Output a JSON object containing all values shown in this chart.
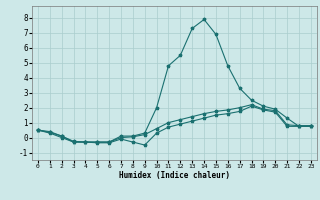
{
  "xlabel": "Humidex (Indice chaleur)",
  "bg_color": "#cde8e8",
  "grid_color": "#aacece",
  "line_color": "#1a7070",
  "xlim": [
    -0.5,
    23.5
  ],
  "ylim": [
    -1.5,
    8.8
  ],
  "xticks": [
    0,
    1,
    2,
    3,
    4,
    5,
    6,
    7,
    8,
    9,
    10,
    11,
    12,
    13,
    14,
    15,
    16,
    17,
    18,
    19,
    20,
    21,
    22,
    23
  ],
  "yticks": [
    -1,
    0,
    1,
    2,
    3,
    4,
    5,
    6,
    7,
    8
  ],
  "series": [
    {
      "x": [
        0,
        1,
        2,
        3,
        4,
        5,
        6,
        7,
        8,
        9,
        10,
        11,
        12,
        13,
        14,
        15,
        16,
        17,
        18,
        19,
        20,
        21,
        22,
        23
      ],
      "y": [
        0.5,
        0.4,
        0.1,
        -0.3,
        -0.3,
        -0.3,
        -0.3,
        0.1,
        0.1,
        0.3,
        2.0,
        4.8,
        5.5,
        7.3,
        7.9,
        6.9,
        4.8,
        3.3,
        2.5,
        2.1,
        1.9,
        1.3,
        0.75,
        0.75
      ]
    },
    {
      "x": [
        0,
        1,
        2,
        3,
        4,
        5,
        6,
        7,
        8,
        9,
        10,
        11,
        12,
        13,
        14,
        15,
        16,
        17,
        18,
        19,
        20,
        21,
        22,
        23
      ],
      "y": [
        0.5,
        0.3,
        0.0,
        -0.3,
        -0.3,
        -0.35,
        -0.35,
        -0.1,
        -0.3,
        -0.5,
        0.3,
        0.7,
        0.9,
        1.1,
        1.3,
        1.5,
        1.6,
        1.75,
        2.1,
        1.85,
        1.7,
        0.75,
        0.75,
        0.75
      ]
    },
    {
      "x": [
        0,
        1,
        2,
        3,
        4,
        5,
        6,
        7,
        8,
        9,
        10,
        11,
        12,
        13,
        14,
        15,
        16,
        17,
        18,
        19,
        20,
        21,
        22,
        23
      ],
      "y": [
        0.5,
        0.35,
        0.1,
        -0.25,
        -0.3,
        -0.3,
        -0.3,
        0.0,
        0.05,
        0.2,
        0.6,
        1.0,
        1.2,
        1.4,
        1.6,
        1.75,
        1.85,
        2.0,
        2.2,
        1.9,
        1.8,
        0.85,
        0.8,
        0.8
      ]
    }
  ]
}
